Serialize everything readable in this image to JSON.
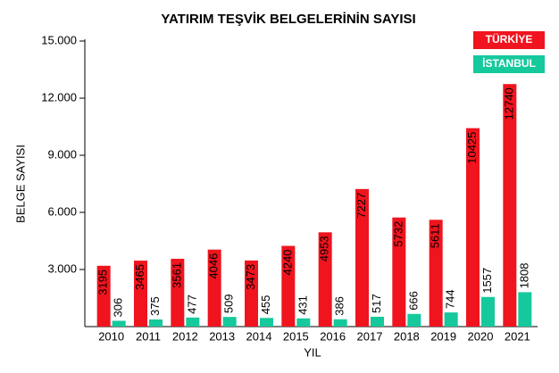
{
  "chart_data": {
    "type": "bar",
    "title": "YATIRIM TEŞVİK BELGELERİNİN SAYISI",
    "xlabel": "YIL",
    "ylabel": "BELGE SAYISI",
    "categories": [
      "2010",
      "2011",
      "2012",
      "2013",
      "2014",
      "2015",
      "2016",
      "2017",
      "2018",
      "2019",
      "2020",
      "2021"
    ],
    "series": [
      {
        "name": "TÜRKİYE",
        "color": "#f0141e",
        "values": [
          3195,
          3465,
          3561,
          4046,
          3473,
          4240,
          4953,
          7227,
          5732,
          5611,
          10425,
          12740
        ]
      },
      {
        "name": "İSTANBUL",
        "color": "#16c99c",
        "values": [
          306,
          375,
          477,
          509,
          455,
          431,
          386,
          517,
          666,
          744,
          1557,
          1808
        ]
      }
    ],
    "ylim": [
      0,
      15000
    ],
    "yticks": [
      {
        "value": 3000,
        "label": "3.000"
      },
      {
        "value": 6000,
        "label": "6.000"
      },
      {
        "value": 9000,
        "label": "9.000"
      },
      {
        "value": 12000,
        "label": "12.000"
      },
      {
        "value": 15000,
        "label": "15.000"
      }
    ],
    "legend": "top-right"
  }
}
